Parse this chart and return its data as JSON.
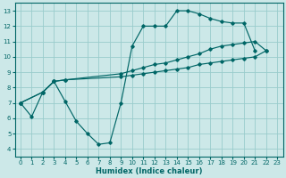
{
  "xlabel": "Humidex (Indice chaleur)",
  "bg_color": "#cce8e8",
  "line_color": "#006666",
  "grid_color": "#99cccc",
  "xlim": [
    -0.5,
    23.5
  ],
  "ylim": [
    3.5,
    13.5
  ],
  "xticks": [
    0,
    1,
    2,
    3,
    4,
    5,
    6,
    7,
    8,
    9,
    10,
    11,
    12,
    13,
    14,
    15,
    16,
    17,
    18,
    19,
    20,
    21,
    22,
    23
  ],
  "yticks": [
    4,
    5,
    6,
    7,
    8,
    9,
    10,
    11,
    12,
    13
  ],
  "curve1_x": [
    0,
    1,
    2,
    3,
    4,
    5,
    6,
    7,
    8,
    9,
    10,
    11,
    12,
    13,
    14,
    15,
    16,
    17,
    18,
    19,
    20,
    21
  ],
  "curve1_y": [
    7.0,
    6.1,
    7.7,
    8.4,
    7.1,
    5.8,
    5.0,
    4.3,
    4.4,
    7.0,
    10.7,
    12.0,
    12.0,
    12.0,
    13.0,
    13.0,
    12.8,
    12.5,
    12.3,
    12.2,
    12.2,
    10.4
  ],
  "curve2_x": [
    0,
    2,
    3,
    4,
    9,
    10,
    11,
    12,
    13,
    14,
    15,
    16,
    17,
    18,
    19,
    20,
    21,
    22
  ],
  "curve2_y": [
    7.0,
    7.7,
    8.4,
    8.5,
    8.9,
    9.1,
    9.3,
    9.5,
    9.6,
    9.8,
    10.0,
    10.2,
    10.5,
    10.7,
    10.8,
    10.9,
    11.0,
    10.4
  ],
  "curve3_x": [
    0,
    2,
    3,
    4,
    9,
    10,
    11,
    12,
    13,
    14,
    15,
    16,
    17,
    18,
    19,
    20,
    21,
    22
  ],
  "curve3_y": [
    7.0,
    7.7,
    8.4,
    8.5,
    8.7,
    8.8,
    8.9,
    9.0,
    9.1,
    9.2,
    9.3,
    9.5,
    9.6,
    9.7,
    9.8,
    9.9,
    10.0,
    10.4
  ]
}
